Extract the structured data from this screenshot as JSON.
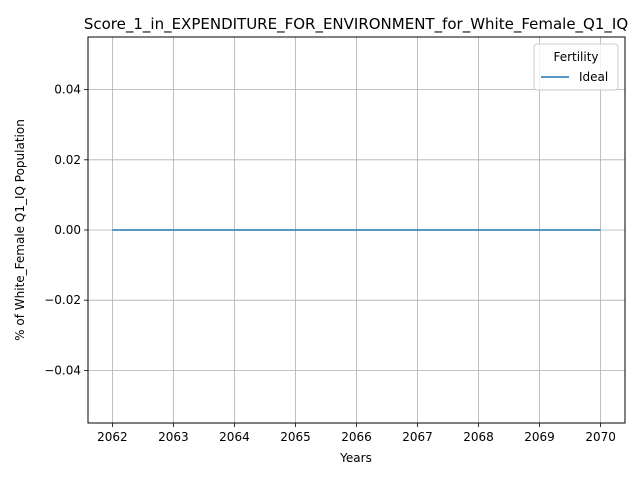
{
  "chart_data": {
    "type": "line",
    "title": "Score_1_in_EXPENDITURE_FOR_ENVIRONMENT_for_White_Female_Q1_IQ",
    "xlabel": "Years",
    "ylabel": "% of White_Female Q1_IQ Population",
    "x": [
      2062,
      2063,
      2064,
      2065,
      2066,
      2067,
      2068,
      2069,
      2070
    ],
    "xlim": [
      2061.6,
      2070.4
    ],
    "ylim": [
      -0.055,
      0.055
    ],
    "x_ticks": [
      "2062",
      "2063",
      "2064",
      "2065",
      "2066",
      "2067",
      "2068",
      "2069",
      "2070"
    ],
    "y_ticks": [
      "−0.04",
      "−0.02",
      "0.00",
      "0.02",
      "0.04"
    ],
    "y_tick_values": [
      -0.04,
      -0.02,
      0.0,
      0.02,
      0.04
    ],
    "grid": true,
    "legend": {
      "title": "Fertility",
      "placement": "top-right"
    },
    "series": [
      {
        "name": "Ideal",
        "color": "#1f77b4",
        "values": [
          0,
          0,
          0,
          0,
          0,
          0,
          0,
          0,
          0
        ]
      }
    ]
  }
}
